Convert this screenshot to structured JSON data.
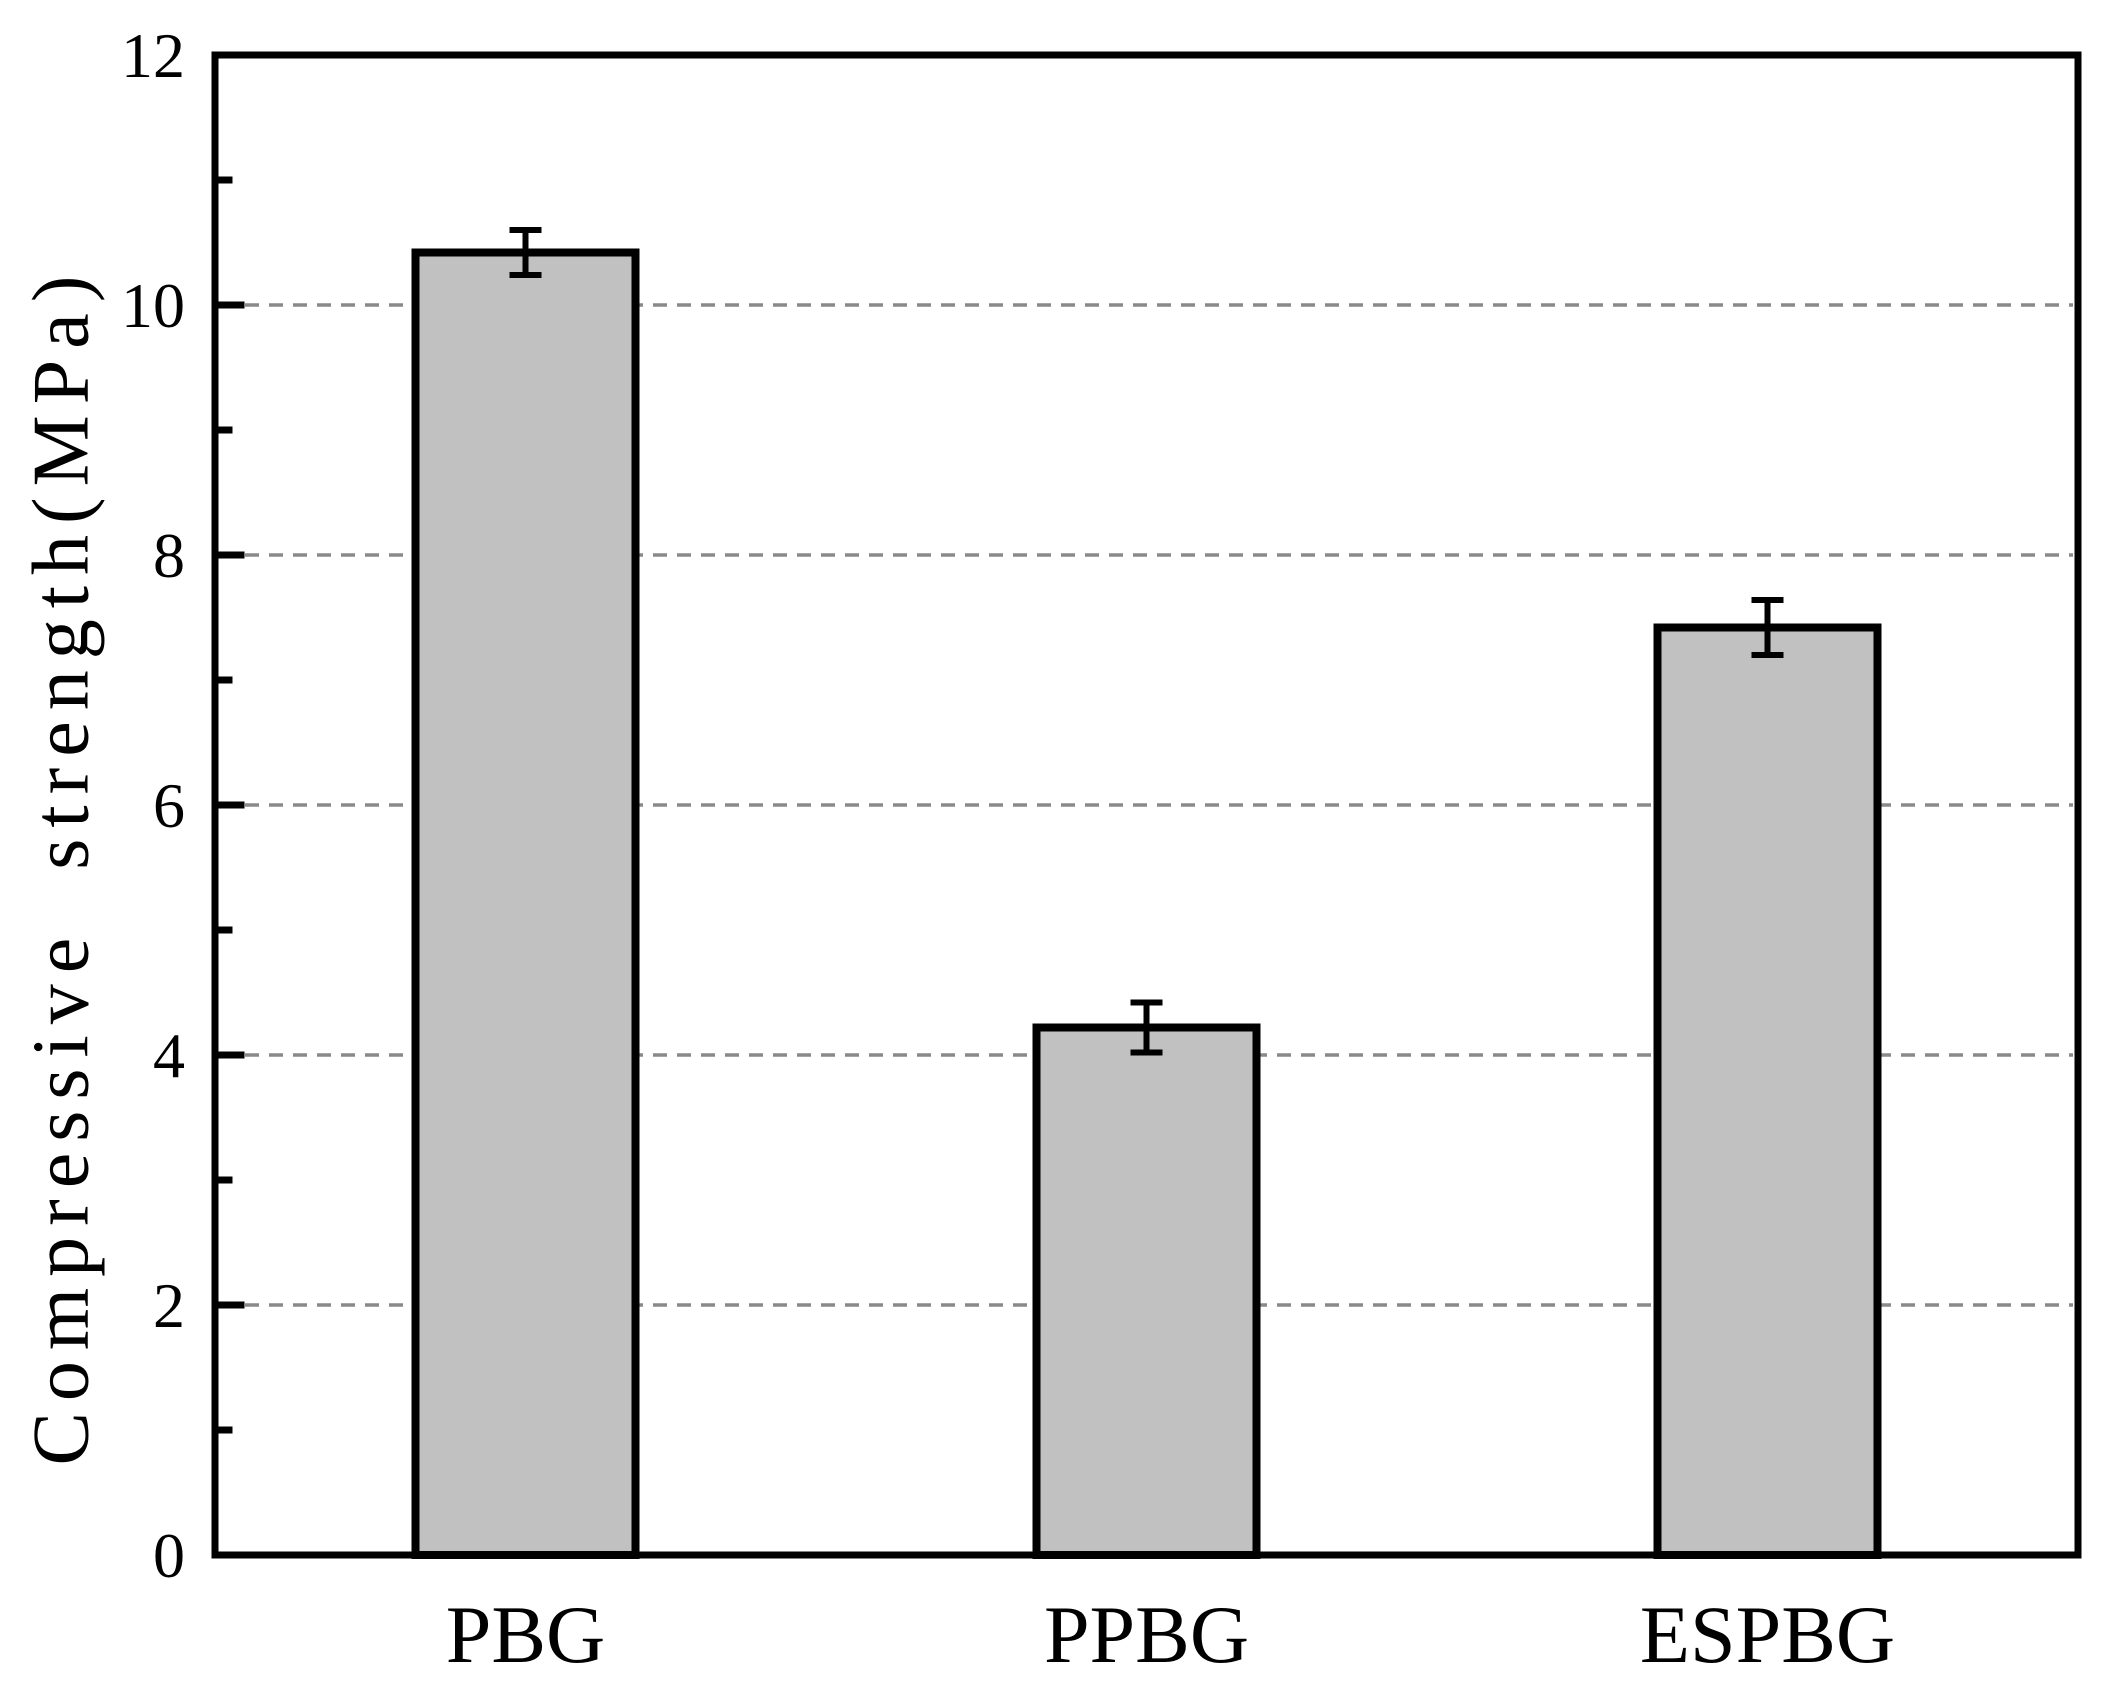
{
  "chart_data": {
    "type": "bar",
    "title": "",
    "ylabel": "Compressive strength(MPa)",
    "xlabel": "",
    "categories": [
      "PBG",
      "PPBG",
      "ESPBG"
    ],
    "values": [
      10.42,
      4.22,
      7.42
    ],
    "errors": [
      0.18,
      0.2,
      0.22
    ],
    "ylim": [
      0,
      12
    ],
    "yticks": [
      0,
      2,
      4,
      6,
      8,
      10,
      12
    ],
    "ytick_labels": [
      "0",
      "2",
      "4",
      "6",
      "8",
      "10",
      "12"
    ],
    "minor_yticks": [
      1,
      3,
      5,
      7,
      9,
      11
    ],
    "gridline_values": [
      2,
      4,
      6,
      8,
      10
    ],
    "grid_style": "horizontal-dashed",
    "legend_position": "none",
    "error_bar_style": "caps-both-ends",
    "colors": {
      "bar_fill": "#c1c1c1",
      "bar_edge": "#000000",
      "axis": "#000000",
      "grid": "#8a8a8a",
      "text": "#000000",
      "background": "#ffffff"
    }
  }
}
